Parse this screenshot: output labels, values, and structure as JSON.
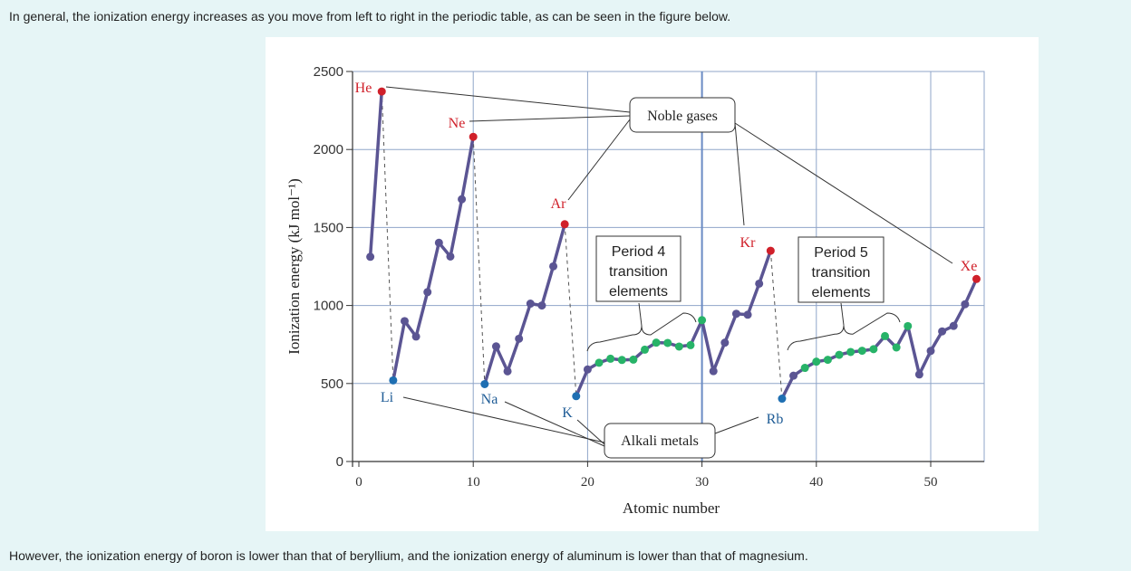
{
  "text": {
    "intro": "In general, the ionization energy increases as you move from left to right in the periodic table, as can be seen in the figure below.",
    "outro": "However, the ionization energy of boron is lower than that of beryllium, and the ionization energy of aluminum is lower than that of magnesium."
  },
  "colors": {
    "line": "#5b5593",
    "noble": "#d0202a",
    "alkali": "#1f6fb2",
    "transition": "#27b368",
    "grid": "#8fa5c9",
    "period_line": "#6a8bc4"
  },
  "chart_data": {
    "type": "line",
    "xlabel": "Atomic number",
    "ylabel": "Ionization energy (kJ mol⁻¹)",
    "xlim": [
      0,
      55
    ],
    "ylim": [
      0,
      2500
    ],
    "x_ticks": [
      0,
      10,
      20,
      30,
      40,
      50
    ],
    "y_ticks": [
      0,
      500,
      1000,
      1500,
      2000,
      2500
    ],
    "grid": true,
    "x": [
      1,
      2,
      3,
      4,
      5,
      6,
      7,
      8,
      9,
      10,
      11,
      12,
      13,
      14,
      15,
      16,
      17,
      18,
      19,
      20,
      21,
      22,
      23,
      24,
      25,
      26,
      27,
      28,
      29,
      30,
      31,
      32,
      33,
      34,
      35,
      36,
      37,
      38,
      39,
      40,
      41,
      42,
      43,
      44,
      45,
      46,
      47,
      48,
      49,
      50,
      51,
      52,
      53,
      54
    ],
    "values": [
      1312,
      2372,
      520,
      900,
      801,
      1086,
      1402,
      1314,
      1681,
      2081,
      496,
      738,
      578,
      787,
      1012,
      1000,
      1251,
      1521,
      419,
      590,
      633,
      659,
      651,
      653,
      717,
      762,
      760,
      737,
      746,
      906,
      579,
      762,
      947,
      941,
      1140,
      1351,
      403,
      550,
      600,
      640,
      652,
      684,
      702,
      710,
      720,
      804,
      731,
      868,
      558,
      709,
      834,
      869,
      1008,
      1170
    ],
    "point_groups": {
      "noble": [
        2,
        10,
        18,
        36,
        54
      ],
      "alkali": [
        3,
        11,
        19,
        37
      ],
      "transition": [
        21,
        22,
        23,
        24,
        25,
        26,
        27,
        28,
        29,
        30,
        39,
        40,
        41,
        42,
        43,
        44,
        45,
        46,
        47,
        48
      ]
    },
    "period_boundaries": [
      30
    ],
    "labels": {
      "He": "He",
      "Ne": "Ne",
      "Ar": "Ar",
      "Kr": "Kr",
      "Xe": "Xe",
      "Li": "Li",
      "Na": "Na",
      "K": "K",
      "Rb": "Rb"
    },
    "callouts": {
      "noble_gases": "Noble gases",
      "alkali_metals": "Alkali metals",
      "period4": [
        "Period 4",
        "transition",
        "elements"
      ],
      "period5": [
        "Period 5",
        "transition",
        "elements"
      ]
    }
  }
}
